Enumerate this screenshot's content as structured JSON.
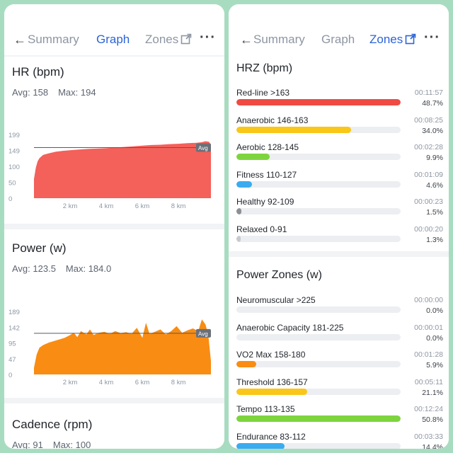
{
  "left": {
    "nav": {
      "summary_label": "Summary",
      "graph_label": "Graph",
      "zones_label": "Zones",
      "active": "graph"
    },
    "hr": {
      "title": "HR (bpm)",
      "avg_label": "Avg: 158",
      "max_label": "Max: 194",
      "color": "#f4605a",
      "chart_data": {
        "type": "area",
        "x_ticks": [
          "2 km",
          "4 km",
          "6 km",
          "8 km"
        ],
        "y_ticks": [
          "199",
          "149",
          "100",
          "50",
          "0"
        ],
        "ylim": [
          0,
          199
        ],
        "xlim": [
          0,
          9.8
        ],
        "avg": 158,
        "avg_label": "Avg",
        "x": [
          0,
          0.1,
          0.2,
          0.3,
          0.5,
          0.8,
          1.2,
          1.6,
          2,
          2.5,
          3,
          3.5,
          4,
          4.5,
          5,
          5.5,
          6,
          6.5,
          7,
          7.5,
          8,
          8.5,
          9,
          9.3,
          9.5,
          9.7,
          9.8
        ],
        "values": [
          60,
          95,
          115,
          125,
          135,
          140,
          145,
          148,
          150,
          152,
          154,
          155,
          156,
          158,
          160,
          162,
          164,
          166,
          167,
          169,
          170,
          172,
          173,
          175,
          178,
          176,
          165
        ]
      }
    },
    "power": {
      "title": "Power (w)",
      "avg_label": "Avg: 123.5",
      "max_label": "Max: 184.0",
      "color": "#f98c12",
      "chart_data": {
        "type": "area",
        "x_ticks": [
          "2 km",
          "4 km",
          "6 km",
          "8 km"
        ],
        "y_ticks": [
          "189",
          "142",
          "95",
          "47",
          "0"
        ],
        "ylim": [
          0,
          189
        ],
        "xlim": [
          0,
          9.8
        ],
        "avg": 123.5,
        "avg_label": "Avg",
        "x": [
          0,
          0.15,
          0.3,
          0.5,
          0.8,
          1.1,
          1.4,
          1.7,
          2.0,
          2.2,
          2.4,
          2.6,
          2.9,
          3.1,
          3.3,
          3.6,
          3.9,
          4.2,
          4.5,
          4.8,
          5.1,
          5.4,
          5.7,
          6.0,
          6.2,
          6.4,
          6.7,
          7.0,
          7.3,
          7.6,
          7.9,
          8.2,
          8.5,
          8.8,
          9.1,
          9.3,
          9.5,
          9.65,
          9.8
        ],
        "values": [
          20,
          60,
          80,
          88,
          95,
          100,
          105,
          110,
          118,
          125,
          112,
          130,
          120,
          135,
          118,
          125,
          128,
          122,
          130,
          124,
          127,
          122,
          140,
          110,
          155,
          122,
          128,
          135,
          120,
          130,
          145,
          125,
          132,
          138,
          130,
          165,
          150,
          120,
          40
        ]
      }
    },
    "cadence": {
      "title": "Cadence (rpm)",
      "avg_label": "Avg: 91",
      "max_label": "Max: 100"
    }
  },
  "right": {
    "nav": {
      "summary_label": "Summary",
      "graph_label": "Graph",
      "zones_label": "Zones",
      "active": "zones"
    },
    "hrz": {
      "title": "HRZ (bpm)",
      "zones": [
        {
          "name": "Red-line >163",
          "time": "00:11:57",
          "pct": "48.7%",
          "fraction": 0.487,
          "color": "#ef4b43"
        },
        {
          "name": "Anaerobic 146-163",
          "time": "00:08:25",
          "pct": "34.0%",
          "fraction": 0.34,
          "color": "#f8c719"
        },
        {
          "name": "Aerobic 128-145",
          "time": "00:02:28",
          "pct": "9.9%",
          "fraction": 0.099,
          "color": "#7ed43e"
        },
        {
          "name": "Fitness 110-127",
          "time": "00:01:09",
          "pct": "4.6%",
          "fraction": 0.046,
          "color": "#3aabf0"
        },
        {
          "name": "Healthy 92-109",
          "time": "00:00:23",
          "pct": "1.5%",
          "fraction": 0.015,
          "color": "#8c8f94"
        },
        {
          "name": "Relaxed 0-91",
          "time": "00:00:20",
          "pct": "1.3%",
          "fraction": 0.013,
          "color": "#c7cacf"
        }
      ]
    },
    "power_zones": {
      "title": "Power Zones (w)",
      "zones": [
        {
          "name": "Neuromuscular >225",
          "time": "00:00:00",
          "pct": "0.0%",
          "fraction": 0.0,
          "color": "#ef4b43"
        },
        {
          "name": "Anaerobic Capacity 181-225",
          "time": "00:00:01",
          "pct": "0.0%",
          "fraction": 0.0,
          "color": "#f98c12"
        },
        {
          "name": "VO2 Max 158-180",
          "time": "00:01:28",
          "pct": "5.9%",
          "fraction": 0.059,
          "color": "#f98c12"
        },
        {
          "name": "Threshold 136-157",
          "time": "00:05:11",
          "pct": "21.1%",
          "fraction": 0.211,
          "color": "#f8c719"
        },
        {
          "name": "Tempo 113-135",
          "time": "00:12:24",
          "pct": "50.8%",
          "fraction": 0.508,
          "color": "#7ed43e"
        },
        {
          "name": "Endurance 83-112",
          "time": "00:03:33",
          "pct": "14.4%",
          "fraction": 0.144,
          "color": "#3aabf0"
        }
      ]
    }
  }
}
